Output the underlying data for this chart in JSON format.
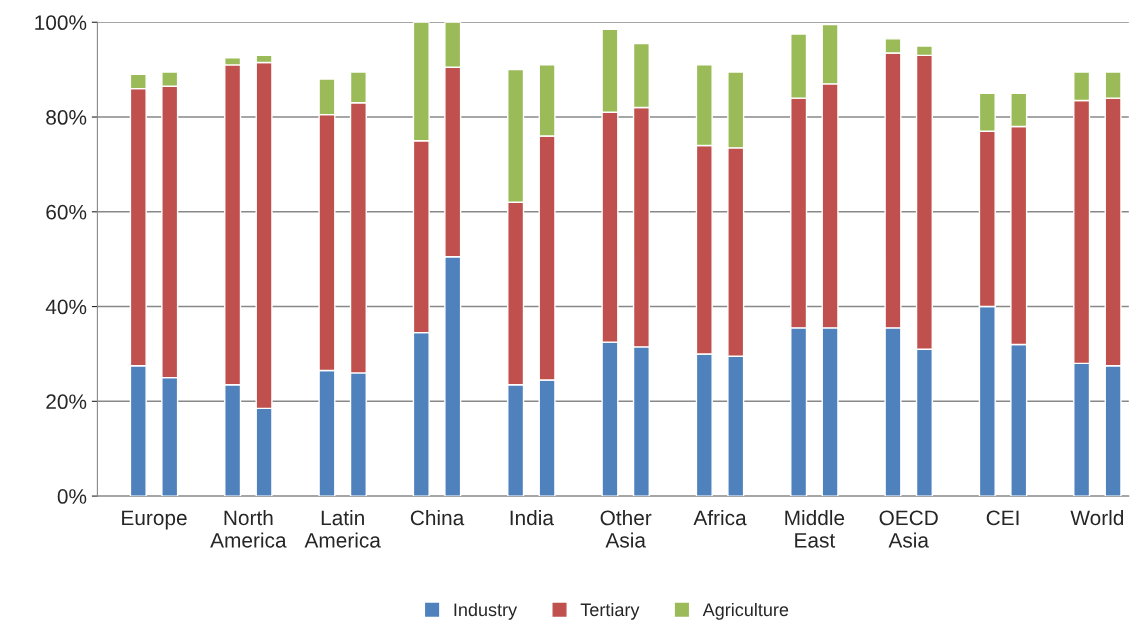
{
  "chart_data": {
    "type": "bar",
    "stacked": true,
    "categories": [
      "Europe",
      null,
      null,
      "North\nAmerica",
      null,
      null,
      "Latin\nAmerica",
      null,
      null,
      "China",
      null,
      null,
      "India",
      null,
      null,
      "Other\nAsia",
      null,
      null,
      "Africa",
      null,
      null,
      "Middle\nEast",
      null,
      null,
      "OECD\nAsia",
      null,
      null,
      "CEI",
      null,
      null,
      "World",
      null
    ],
    "series": [
      {
        "name": "Industry",
        "color": "#4f81bd",
        "values": [
          27.5,
          25,
          null,
          23.5,
          18.5,
          null,
          26.5,
          26,
          null,
          34.5,
          50.5,
          null,
          23.5,
          24.5,
          null,
          32.5,
          31.5,
          null,
          30,
          29.5,
          null,
          35.5,
          35.5,
          null,
          35.5,
          31,
          null,
          40,
          32,
          null,
          28,
          27.5
        ]
      },
      {
        "name": "Tertiary",
        "color": "#c0504d",
        "values": [
          58.5,
          61.5,
          null,
          67.5,
          73,
          null,
          54,
          57,
          null,
          40.5,
          40,
          null,
          38.5,
          51.5,
          null,
          48.5,
          50.5,
          null,
          44,
          44,
          null,
          48.5,
          51.5,
          null,
          58,
          62,
          null,
          37,
          46,
          null,
          55.5,
          56.5
        ]
      },
      {
        "name": "Agriculture",
        "color": "#9bbb59",
        "values": [
          3,
          3,
          null,
          1.5,
          1.5,
          null,
          7.5,
          6.5,
          null,
          25,
          9.5,
          null,
          28,
          15,
          null,
          17.5,
          13.5,
          null,
          17,
          16,
          null,
          13.5,
          12.5,
          null,
          3,
          2,
          null,
          8,
          7,
          null,
          6,
          5.5
        ]
      }
    ],
    "ylim": [
      0,
      100
    ],
    "yticks": [
      {
        "value": 0,
        "label": "0%"
      },
      {
        "value": 20,
        "label": "20%"
      },
      {
        "value": 40,
        "label": "40%"
      },
      {
        "value": 60,
        "label": "60%"
      },
      {
        "value": 80,
        "label": "80%"
      },
      {
        "value": 100,
        "label": "100%"
      }
    ],
    "grid": "y",
    "legend": "bottom"
  }
}
